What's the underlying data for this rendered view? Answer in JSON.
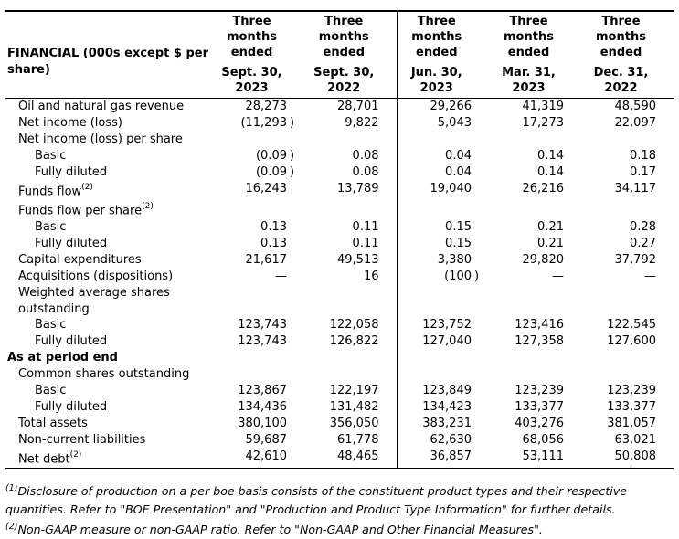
{
  "table": {
    "header": {
      "label": "FINANCIAL (000s except $ per share)",
      "period_label": "Three months ended",
      "columns": [
        "Sept. 30, 2023",
        "Sept. 30, 2022",
        "Jun. 30, 2023",
        "Mar. 31, 2023",
        "Dec. 31, 2022"
      ]
    },
    "rows": [
      {
        "label": "Oil and natural gas revenue",
        "indent": 1,
        "values": [
          "28,273",
          "28,701",
          "29,266",
          "41,319",
          "48,590"
        ]
      },
      {
        "label": "Net income (loss)",
        "indent": 1,
        "values": [
          "(11,293)",
          "9,822",
          "5,043",
          "17,273",
          "22,097"
        ]
      },
      {
        "label": "Net income (loss) per share",
        "indent": 1,
        "values": []
      },
      {
        "label": "Basic",
        "indent": 2,
        "values": [
          "(0.09)",
          "0.08",
          "0.04",
          "0.14",
          "0.18"
        ]
      },
      {
        "label": "Fully diluted",
        "indent": 2,
        "values": [
          "(0.09)",
          "0.08",
          "0.04",
          "0.14",
          "0.17"
        ]
      },
      {
        "label": "Funds flow",
        "sup": "(2)",
        "indent": 1,
        "values": [
          "16,243",
          "13,789",
          "19,040",
          "26,216",
          "34,117"
        ]
      },
      {
        "label": "Funds flow per share",
        "sup": "(2)",
        "indent": 1,
        "values": []
      },
      {
        "label": "Basic",
        "indent": 2,
        "values": [
          "0.13",
          "0.11",
          "0.15",
          "0.21",
          "0.28"
        ]
      },
      {
        "label": "Fully diluted",
        "indent": 2,
        "values": [
          "0.13",
          "0.11",
          "0.15",
          "0.21",
          "0.27"
        ]
      },
      {
        "label": "Capital expenditures",
        "indent": 1,
        "values": [
          "21,617",
          "49,513",
          "3,380",
          "29,820",
          "37,792"
        ]
      },
      {
        "label": "Acquisitions (dispositions)",
        "indent": 1,
        "values": [
          "—",
          "16",
          "(100)",
          "—",
          "—"
        ]
      },
      {
        "label": "Weighted average shares outstanding",
        "indent": 1,
        "values": []
      },
      {
        "label": "Basic",
        "indent": 2,
        "values": [
          "123,743",
          "122,058",
          "123,752",
          "123,416",
          "122,545"
        ]
      },
      {
        "label": "Fully diluted",
        "indent": 2,
        "values": [
          "123,743",
          "126,822",
          "127,040",
          "127,358",
          "127,600"
        ]
      },
      {
        "label": "As at period end",
        "indent": 0,
        "bold": true,
        "values": []
      },
      {
        "label": "Common shares outstanding",
        "indent": 1,
        "values": []
      },
      {
        "label": "Basic",
        "indent": 2,
        "values": [
          "123,867",
          "122,197",
          "123,849",
          "123,239",
          "123,239"
        ]
      },
      {
        "label": "Fully diluted",
        "indent": 2,
        "values": [
          "134,436",
          "131,482",
          "134,423",
          "133,377",
          "133,377"
        ]
      },
      {
        "label": "Total assets",
        "indent": 1,
        "values": [
          "380,100",
          "356,050",
          "383,231",
          "403,276",
          "381,057"
        ]
      },
      {
        "label": "Non-current liabilities",
        "indent": 1,
        "values": [
          "59,687",
          "61,778",
          "62,630",
          "68,056",
          "63,021"
        ]
      },
      {
        "label": "Net debt",
        "sup": "(2)",
        "indent": 1,
        "values": [
          "42,610",
          "48,465",
          "36,857",
          "53,111",
          "50,808"
        ]
      }
    ]
  },
  "footnotes": [
    {
      "marker": "(1)",
      "text": "Disclosure of production on a per boe basis consists of the constituent product types and their respective quantities. Refer to \"BOE Presentation\" and \"Production and Product Type Information\" for further details."
    },
    {
      "marker": "(2)",
      "text": "Non-GAAP measure or non-GAAP ratio. Refer to \"Non-GAAP and Other Financial Measures\"."
    }
  ]
}
